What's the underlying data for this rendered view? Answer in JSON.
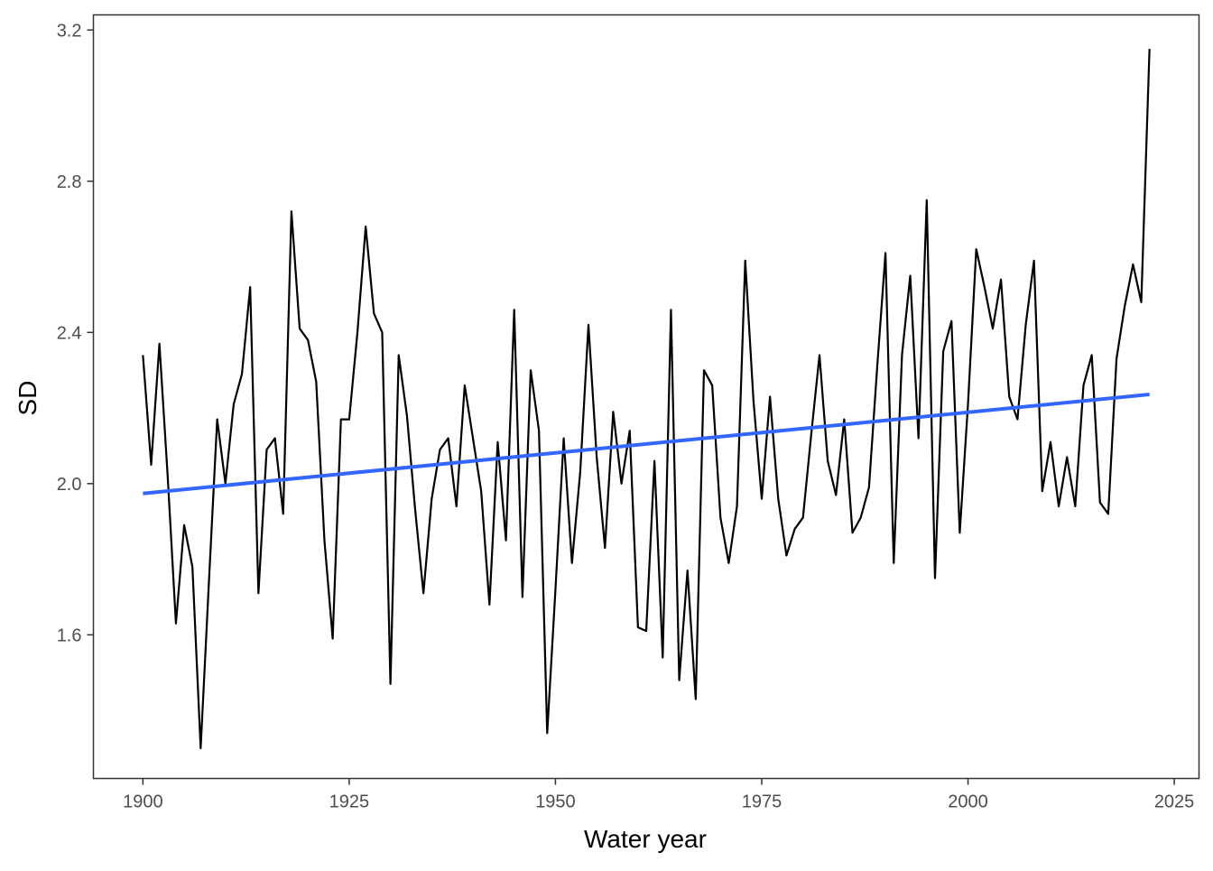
{
  "chart_data": {
    "type": "line",
    "xlabel": "Water year",
    "ylabel": "SD",
    "xlim": [
      1894,
      2028
    ],
    "ylim": [
      1.22,
      3.24
    ],
    "x_ticks": [
      1900,
      1925,
      1950,
      1975,
      2000,
      2025
    ],
    "y_ticks": [
      1.6,
      2.0,
      2.4,
      2.8,
      3.2
    ],
    "x_tick_labels": [
      "1900",
      "1925",
      "1950",
      "1975",
      "2000",
      "2025"
    ],
    "y_tick_labels": [
      "1.6",
      "2.0",
      "2.4",
      "2.8",
      "3.2"
    ],
    "grid": false,
    "series": [
      {
        "color": "#000000",
        "x": [
          1900,
          1901,
          1902,
          1903,
          1904,
          1905,
          1906,
          1907,
          1908,
          1909,
          1910,
          1911,
          1912,
          1913,
          1914,
          1915,
          1916,
          1917,
          1918,
          1919,
          1920,
          1921,
          1922,
          1923,
          1924,
          1925,
          1926,
          1927,
          1928,
          1929,
          1930,
          1931,
          1932,
          1933,
          1934,
          1935,
          1936,
          1937,
          1938,
          1939,
          1940,
          1941,
          1942,
          1943,
          1944,
          1945,
          1946,
          1947,
          1948,
          1949,
          1950,
          1951,
          1952,
          1953,
          1954,
          1955,
          1956,
          1957,
          1958,
          1959,
          1960,
          1961,
          1962,
          1963,
          1964,
          1965,
          1966,
          1967,
          1968,
          1969,
          1970,
          1971,
          1972,
          1973,
          1974,
          1975,
          1976,
          1977,
          1978,
          1979,
          1980,
          1981,
          1982,
          1983,
          1984,
          1985,
          1986,
          1987,
          1988,
          1989,
          1990,
          1991,
          1992,
          1993,
          1994,
          1995,
          1996,
          1997,
          1998,
          1999,
          2000,
          2001,
          2002,
          2003,
          2004,
          2005,
          2006,
          2007,
          2008,
          2009,
          2010,
          2011,
          2012,
          2013,
          2014,
          2015,
          2016,
          2017,
          2018,
          2019,
          2020,
          2021,
          2022
        ],
        "y": [
          2.34,
          2.05,
          2.37,
          2.02,
          1.63,
          1.89,
          1.78,
          1.3,
          1.74,
          2.17,
          2.0,
          2.21,
          2.29,
          2.52,
          1.71,
          2.09,
          2.12,
          1.92,
          2.72,
          2.41,
          2.38,
          2.27,
          1.85,
          1.59,
          2.17,
          2.17,
          2.4,
          2.68,
          2.45,
          2.4,
          1.47,
          2.34,
          2.18,
          1.93,
          1.71,
          1.96,
          2.09,
          2.12,
          1.94,
          2.26,
          2.12,
          1.98,
          1.68,
          2.11,
          1.85,
          2.46,
          1.7,
          2.3,
          2.14,
          1.34,
          1.72,
          2.12,
          1.79,
          2.03,
          2.42,
          2.07,
          1.83,
          2.19,
          2.0,
          2.14,
          1.62,
          1.61,
          2.06,
          1.54,
          2.46,
          1.48,
          1.77,
          1.43,
          2.3,
          2.26,
          1.91,
          1.79,
          1.94,
          2.59,
          2.22,
          1.96,
          2.23,
          1.96,
          1.81,
          1.88,
          1.91,
          2.13,
          2.34,
          2.06,
          1.97,
          2.17,
          1.87,
          1.91,
          1.99,
          2.31,
          2.61,
          1.79,
          2.34,
          2.55,
          2.12,
          2.75,
          1.75,
          2.35,
          2.43,
          1.87,
          2.21,
          2.62,
          2.52,
          2.41,
          2.54,
          2.23,
          2.17,
          2.42,
          2.59,
          1.98,
          2.11,
          1.94,
          2.07,
          1.94,
          2.26,
          2.34,
          1.95,
          1.92,
          2.33,
          2.47,
          2.58,
          2.48,
          3.15
        ]
      },
      {
        "color": "#3366FF",
        "x": [
          1900,
          2022
        ],
        "y": [
          1.974,
          2.236
        ]
      }
    ]
  }
}
